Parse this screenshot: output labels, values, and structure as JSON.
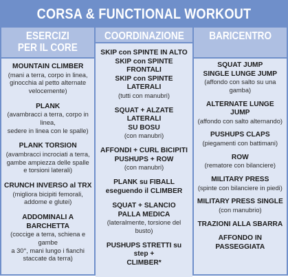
{
  "title": "CORSA & FUNCTIONAL WORKOUT",
  "columns": [
    {
      "header": [
        "ESERCIZI",
        "PER IL CORE"
      ],
      "items": [
        {
          "name": [
            "MOUNTAIN CLIMBER"
          ],
          "desc": [
            "(mani a terra, corpo in linea,",
            "ginocchia al petto alternate",
            "velocemente)"
          ]
        },
        {
          "name": [
            "PLANK"
          ],
          "desc": [
            "(avambracci a terra, corpo in linea,",
            "sedere in linea con le spalle)"
          ]
        },
        {
          "name": [
            "PLANK TORSION"
          ],
          "desc": [
            "(avambracci incrociati a terra,",
            "gambe ampiezza delle spalle",
            "e torsioni laterali)"
          ]
        },
        {
          "name": [
            "CRUNCH INVERSO al TRX"
          ],
          "desc": [
            "(migliora bicipiti femorali,",
            "addome e glutei)"
          ]
        },
        {
          "name": [
            "ADDOMINALI A BARCHETTA"
          ],
          "desc": [
            "(coccige a terra, schiena e gambe",
            "a 30°, mani lungo i fianchi",
            "staccate da terra)"
          ]
        }
      ]
    },
    {
      "header": [
        "COORDINAZIONE"
      ],
      "items": [
        {
          "name": [
            "SKIP con SPINTE IN ALTO",
            "SKIP con SPINTE FRONTALI",
            "SKIP con SPINTE LATERALI"
          ],
          "desc": [
            "(tutti con manubri)"
          ]
        },
        {
          "name": [
            "SQUAT + ALZATE LATERALI",
            "SU BOSU"
          ],
          "desc": [
            "(con manubri)"
          ]
        },
        {
          "name": [
            "AFFONDI + CURL BICIPITI",
            "PUSHUPS + ROW"
          ],
          "desc": [
            "(con manubri)"
          ]
        },
        {
          "name": [
            "PLANK su FIBALL",
            "eseguendo il CLIMBER"
          ],
          "desc": []
        },
        {
          "name": [
            "SQUAT + SLANCIO",
            "PALLA MEDICA"
          ],
          "desc": [
            "(lateralmente, torsione del busto)"
          ]
        },
        {
          "name": [
            "PUSHUPS STRETTI su step +",
            "CLIMBER*"
          ],
          "desc": []
        }
      ]
    },
    {
      "header": [
        "BARICENTRO"
      ],
      "items": [
        {
          "name": [
            "SQUAT JUMP",
            "SINGLE LUNGE JUMP"
          ],
          "desc": [
            "(affondo con salto su una gamba)"
          ]
        },
        {
          "name": [
            "ALTERNATE LUNGE JUMP"
          ],
          "desc": [
            "(affondo con salto alternando)"
          ]
        },
        {
          "name": [
            "PUSHUPS CLAPS"
          ],
          "desc": [
            "(piegamenti con battimani)"
          ]
        },
        {
          "name": [
            "ROW"
          ],
          "desc": [
            "(rematore con bilanciere)"
          ]
        },
        {
          "name": [
            "MILITARY PRESS"
          ],
          "desc": [
            "(spinte con bilanciere in piedi)"
          ]
        },
        {
          "name": [
            "MILITARY PRESS SINGLE"
          ],
          "desc": [
            "(con manubrio)"
          ]
        },
        {
          "name": [
            "TRAZIONI ALLA SBARRA"
          ],
          "desc": []
        },
        {
          "name": [
            "AFFONDO IN PASSEGGIATA"
          ],
          "desc": []
        }
      ]
    }
  ]
}
